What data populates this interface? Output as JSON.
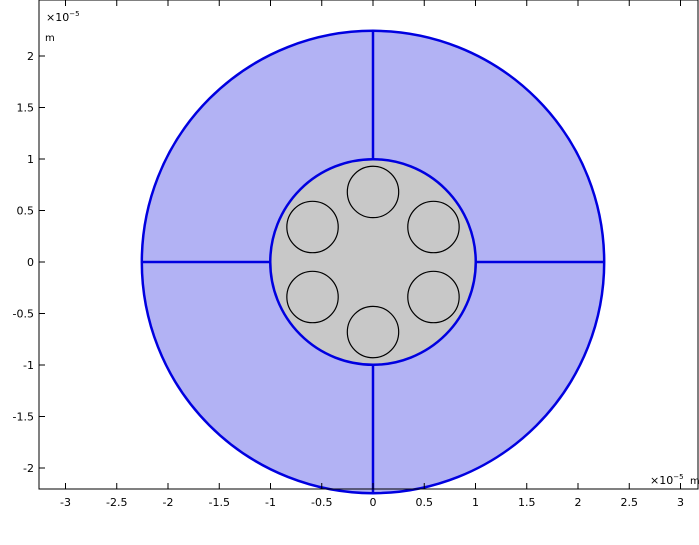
{
  "axes": {
    "x_ticks": [
      "-3",
      "-2.5",
      "-2",
      "-1.5",
      "-1",
      "-0.5",
      "0",
      "0.5",
      "1",
      "1.5",
      "2",
      "2.5",
      "3"
    ],
    "y_ticks": [
      "2",
      "1.5",
      "1",
      "0.5",
      "0",
      "-0.5",
      "-1",
      "-1.5",
      "-2"
    ],
    "x_multiplier": "×10",
    "x_exponent": "−5",
    "x_unit": "m",
    "y_multiplier": "×10",
    "y_exponent": "−5",
    "y_unit": "m"
  },
  "geometry": {
    "units_scale": "1e-5 m",
    "outer_circle_radius": 2.25,
    "inner_circle_radius": 1.0,
    "small_circle_radius": 0.25,
    "small_circle_centers": [
      [
        0,
        0.68
      ],
      [
        0.59,
        0.34
      ],
      [
        0.59,
        -0.34
      ],
      [
        0,
        -0.68
      ],
      [
        -0.59,
        -0.34
      ],
      [
        -0.59,
        0.34
      ]
    ],
    "colors": {
      "annulus_fill": "#b2b2f4",
      "core_fill": "#c8c8c8",
      "boundary": "#0000e0",
      "small_circle_stroke": "#000000"
    }
  }
}
